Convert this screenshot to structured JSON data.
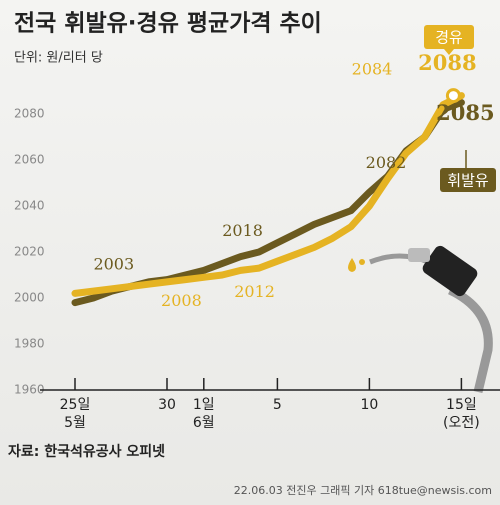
{
  "chart_data": {
    "type": "line",
    "title": "전국 휘발유·경유 평균가격 추이",
    "subtitle": "단위: 원/리터 당",
    "source": "자료: 한국석유공사 오피넷",
    "credit": "22.06.03 전진우 그래픽 기자 618tue@newsis.com",
    "categories": [
      "25일\n5월",
      null,
      null,
      null,
      null,
      "30",
      null,
      "1일\n6월",
      null,
      null,
      null,
      "5",
      null,
      null,
      null,
      null,
      "10",
      null,
      null,
      null,
      null,
      "15일\n(오전)"
    ],
    "series": [
      {
        "name": "경유",
        "color": "#e5b323",
        "values": [
          2002,
          2003,
          2004,
          2005,
          2006,
          2007,
          2008,
          2009,
          2010,
          2012,
          2013,
          2016,
          2019,
          2022,
          2026,
          2031,
          2040,
          2052,
          2063,
          2070,
          2084,
          2088
        ]
      },
      {
        "name": "휘발유",
        "color": "#6b5a1f",
        "values": [
          1998,
          2000,
          2003,
          2005,
          2007,
          2008,
          2010,
          2012,
          2015,
          2018,
          2020,
          2024,
          2028,
          2032,
          2035,
          2038,
          2046,
          2053,
          2064,
          2070,
          2082,
          2085
        ]
      }
    ],
    "ylim": [
      1960,
      2100
    ],
    "yticks": [
      1960,
      1980,
      2000,
      2020,
      2040,
      2060,
      2080
    ]
  }
}
